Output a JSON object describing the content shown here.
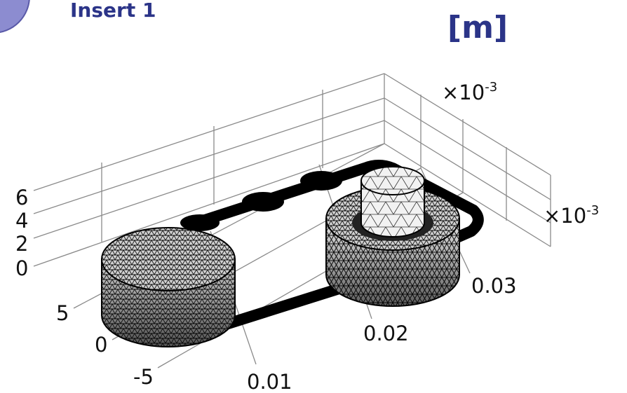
{
  "header": {
    "inset_label": "Insert 1",
    "unit": "[m]"
  },
  "axes": {
    "z_ticks": [
      "6",
      "4",
      "2",
      "0"
    ],
    "y_ticks": [
      "5",
      "0",
      "-5"
    ],
    "x_ticks": [
      "0.01",
      "0.02",
      "0.03"
    ],
    "scale_labels": [
      {
        "base": "×10",
        "exponent": "-3"
      },
      {
        "base": "×10",
        "exponent": "-3"
      }
    ]
  }
}
